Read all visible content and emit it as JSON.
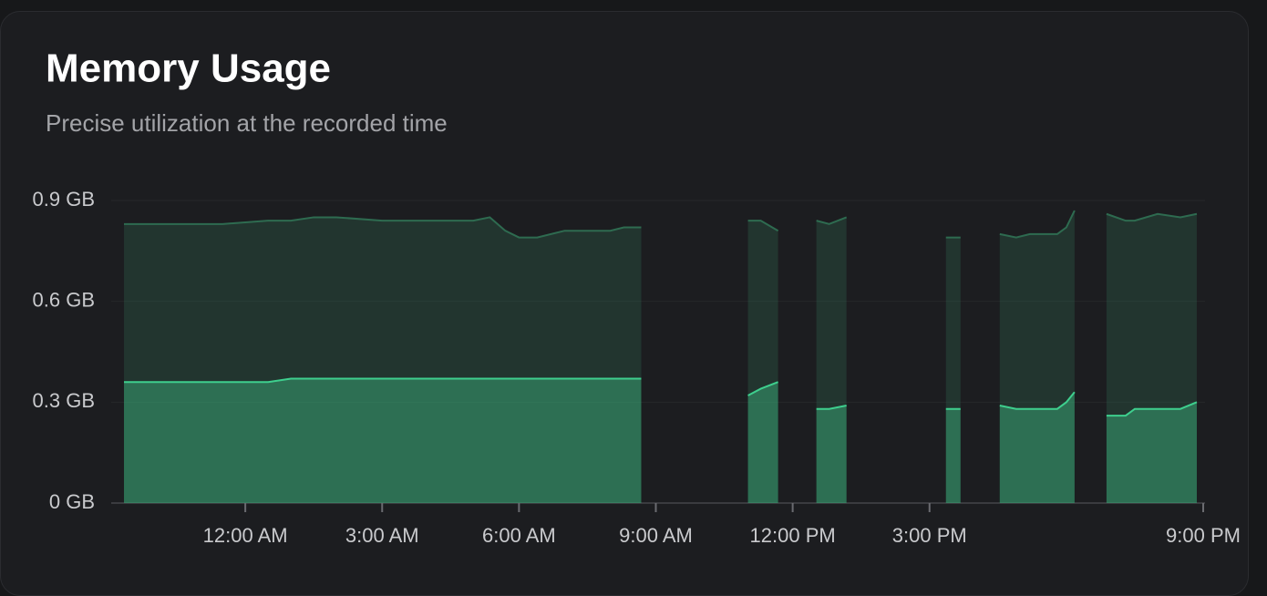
{
  "chart_data": {
    "type": "area",
    "title": "Memory Usage",
    "subtitle": "Precise utilization at the recorded time",
    "x": [
      -2.66,
      -1.5,
      -0.5,
      0.5,
      1.0,
      1.5,
      2.0,
      3.0,
      4.0,
      5.0,
      5.36,
      5.7,
      6.0,
      6.4,
      7.0,
      8.0,
      8.3,
      8.68,
      10,
      11.02,
      11.3,
      11.68,
      12.1,
      12.52,
      12.8,
      13.18,
      14.3,
      15.36,
      15.68,
      16.1,
      16.54,
      16.9,
      17.2,
      17.8,
      18.0,
      18.18,
      18.5,
      18.88,
      19.3,
      19.5,
      20.0,
      20.5,
      20.86
    ],
    "series": [
      {
        "color": "#2e6b50",
        "values": [
          0.83,
          0.83,
          0.83,
          0.84,
          0.84,
          0.85,
          0.85,
          0.84,
          0.84,
          0.84,
          0.85,
          0.81,
          0.79,
          0.79,
          0.81,
          0.81,
          0.82,
          0.82,
          null,
          0.84,
          0.84,
          0.81,
          null,
          0.84,
          0.83,
          0.85,
          null,
          0.79,
          0.79,
          null,
          0.8,
          0.79,
          0.8,
          0.8,
          0.82,
          0.87,
          null,
          0.86,
          0.84,
          0.84,
          0.86,
          0.85,
          0.86
        ]
      },
      {
        "color": "#3ecf8e",
        "values": [
          0.36,
          0.36,
          0.36,
          0.36,
          0.37,
          0.37,
          0.37,
          0.37,
          0.37,
          0.37,
          0.37,
          0.37,
          0.37,
          0.37,
          0.37,
          0.37,
          0.37,
          0.37,
          null,
          0.32,
          0.34,
          0.36,
          null,
          0.28,
          0.28,
          0.29,
          null,
          0.28,
          0.28,
          null,
          0.29,
          0.28,
          0.28,
          0.28,
          0.3,
          0.33,
          null,
          0.26,
          0.26,
          0.28,
          0.28,
          0.28,
          0.3
        ]
      }
    ],
    "xlim": [
      -2.94,
      21.04
    ],
    "xticks": [
      {
        "value": 0,
        "label": "12:00 AM"
      },
      {
        "value": 3,
        "label": "3:00 AM"
      },
      {
        "value": 6,
        "label": "6:00 AM"
      },
      {
        "value": 9,
        "label": "9:00 AM"
      },
      {
        "value": 12,
        "label": "12:00 PM"
      },
      {
        "value": 15,
        "label": "3:00 PM"
      },
      {
        "value": 21,
        "label": "9:00 PM"
      }
    ],
    "ylim": [
      0,
      0.9
    ],
    "yticks": [
      {
        "value": 0,
        "label": "0 GB"
      },
      {
        "value": 0.3,
        "label": "0.3 GB"
      },
      {
        "value": 0.6,
        "label": "0.6 GB"
      },
      {
        "value": 0.9,
        "label": "0.9 GB"
      }
    ],
    "grid": true
  }
}
